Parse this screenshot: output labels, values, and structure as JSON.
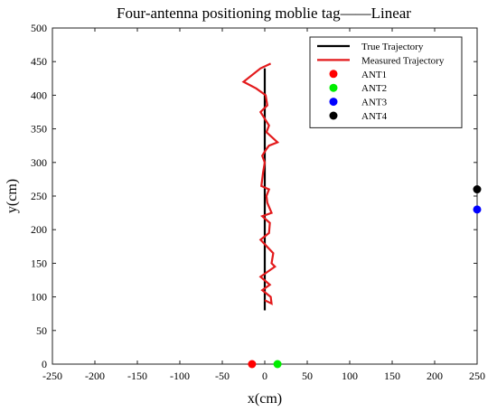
{
  "chart_data": {
    "type": "line",
    "title": "Four-antenna positioning moblie tag——Linear",
    "xlabel": "x(cm)",
    "ylabel": "y(cm)",
    "xlim": [
      -250,
      250
    ],
    "ylim": [
      0,
      500
    ],
    "xticks": [
      -250,
      -200,
      -150,
      -100,
      -50,
      0,
      50,
      100,
      150,
      200,
      250
    ],
    "yticks": [
      0,
      50,
      100,
      150,
      200,
      250,
      300,
      350,
      400,
      450,
      500
    ],
    "grid": false,
    "legend_position": "top-right",
    "series": [
      {
        "name": "True Trajectory",
        "type": "line",
        "color": "#000000",
        "x": [
          0,
          0
        ],
        "y": [
          80,
          440
        ]
      },
      {
        "name": "Measured Trajectory",
        "type": "line",
        "color": "#e31a1c",
        "x": [
          0,
          8,
          7,
          -3,
          6,
          -5,
          12,
          8,
          10,
          -5,
          5,
          6,
          -3,
          8,
          3,
          2,
          5,
          -4,
          -2,
          0,
          -3,
          2,
          5,
          15,
          2,
          5,
          0,
          -5,
          3,
          1,
          -10,
          -25,
          -5,
          7
        ],
        "y": [
          95,
          90,
          100,
          110,
          118,
          130,
          145,
          150,
          165,
          185,
          195,
          210,
          220,
          225,
          240,
          250,
          260,
          265,
          285,
          300,
          310,
          320,
          325,
          330,
          345,
          355,
          365,
          375,
          385,
          400,
          410,
          420,
          440,
          447
        ]
      },
      {
        "name": "ANT1",
        "type": "scatter",
        "color": "#ff0000",
        "x": [
          -15
        ],
        "y": [
          0
        ]
      },
      {
        "name": "ANT2",
        "type": "scatter",
        "color": "#00ee00",
        "x": [
          15
        ],
        "y": [
          0
        ]
      },
      {
        "name": "ANT3",
        "type": "scatter",
        "color": "#0000ff",
        "x": [
          250
        ],
        "y": [
          230
        ]
      },
      {
        "name": "ANT4",
        "type": "scatter",
        "color": "#000000",
        "x": [
          250
        ],
        "y": [
          260
        ]
      }
    ]
  }
}
